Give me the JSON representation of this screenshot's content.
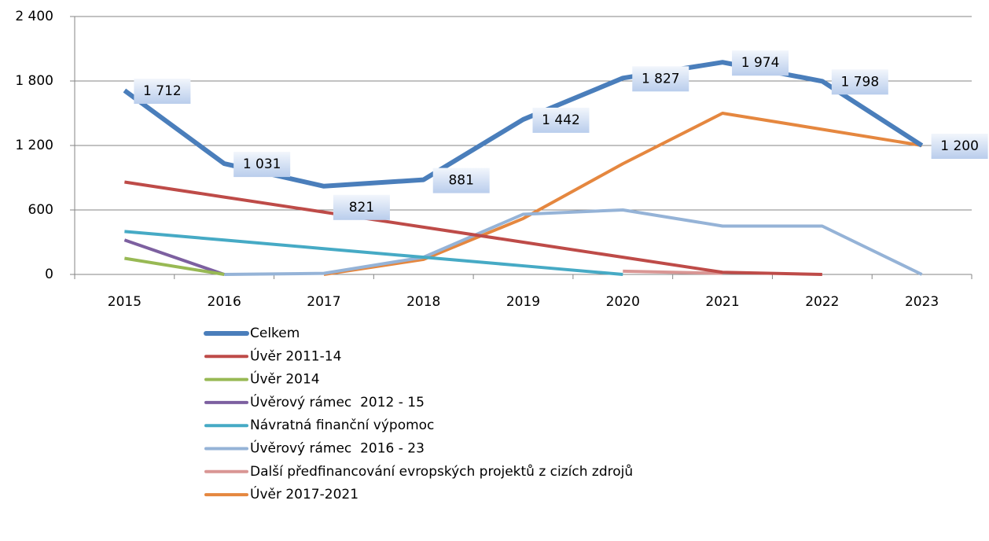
{
  "chart_data": {
    "type": "line",
    "categories": [
      "2015",
      "2016",
      "2017",
      "2018",
      "2019",
      "2020",
      "2021",
      "2022",
      "2023"
    ],
    "ylim": [
      0,
      2400
    ],
    "yticks": [
      0,
      600,
      {
        "value": 1200,
        "label": "1 200"
      },
      {
        "value": 1800,
        "label": "1 800"
      },
      {
        "value": 2400,
        "label": "2 400"
      }
    ],
    "grid": true,
    "legend": "bottom",
    "series": [
      {
        "name": "Celkem",
        "color": "#4a7ebb",
        "values": [
          1712,
          1031,
          821,
          881,
          1442,
          1827,
          1974,
          1798,
          1200
        ],
        "value_labels": [
          "1 712",
          "1 031",
          "821",
          "881",
          "1 442",
          "1 827",
          "1 974",
          "1 798",
          "1 200"
        ]
      },
      {
        "name": "Úvěr 2011-14",
        "color": "#be4b48",
        "values": [
          860,
          720,
          580,
          440,
          300,
          160,
          20,
          0,
          null
        ]
      },
      {
        "name": "Úvěr 2014",
        "color": "#98b954",
        "values": [
          150,
          0,
          null,
          null,
          null,
          null,
          null,
          null,
          null
        ]
      },
      {
        "name": "Úvěrový rámec  2012 - 15",
        "color": "#7d60a0",
        "values": [
          320,
          0,
          null,
          null,
          null,
          null,
          null,
          null,
          null
        ]
      },
      {
        "name": "Návratná finanční výpomoc",
        "color": "#46aac5",
        "values": [
          400,
          320,
          240,
          160,
          80,
          0,
          null,
          null,
          null
        ]
      },
      {
        "name": "Úvěrový rámec  2016 - 23",
        "color": "#95b3d7",
        "values": [
          null,
          0,
          10,
          160,
          560,
          600,
          450,
          450,
          0
        ]
      },
      {
        "name": "Další předfinancování evropských projektů z cizích zdrojů",
        "color": "#d99694",
        "values": [
          null,
          null,
          null,
          null,
          null,
          30,
          10,
          null,
          null
        ]
      },
      {
        "name": "Úvěr 2017-2021",
        "color": "#e5873f",
        "values": [
          null,
          null,
          0,
          140,
          520,
          1030,
          1500,
          1350,
          1200
        ]
      }
    ]
  }
}
